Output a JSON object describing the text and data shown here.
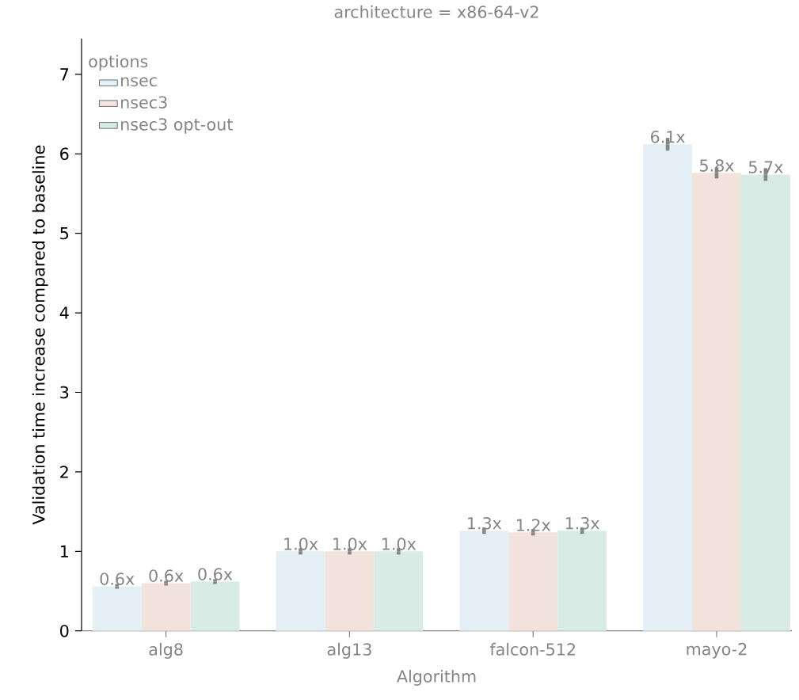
{
  "chart_data": {
    "type": "bar",
    "title": "architecture = x86-64-v2",
    "xlabel": "Algorithm",
    "ylabel": "Validation time increase compared to baseline",
    "legend_title": "options",
    "legend": "top left",
    "categories": [
      "alg8",
      "alg13",
      "falcon-512",
      "mayo-2"
    ],
    "ylim": [
      0,
      7.45
    ],
    "yticks": [
      0,
      1,
      2,
      3,
      4,
      5,
      6,
      7
    ],
    "series": [
      {
        "name": "nsec",
        "color": "#e4eff6",
        "values": [
          0.56,
          1.0,
          1.26,
          6.12
        ],
        "errors": [
          0.03,
          0.04,
          0.04,
          0.08
        ],
        "value_labels": [
          "0.6x",
          "1.0x",
          "1.3x",
          "6.1x"
        ]
      },
      {
        "name": "nsec3",
        "color": "#f2e4dc",
        "values": [
          0.6,
          1.0,
          1.24,
          5.76
        ],
        "errors": [
          0.03,
          0.04,
          0.04,
          0.07
        ],
        "value_labels": [
          "0.6x",
          "1.0x",
          "1.2x",
          "5.8x"
        ]
      },
      {
        "name": "nsec3 opt-out",
        "color": "#d9ebe5",
        "values": [
          0.62,
          1.0,
          1.26,
          5.74
        ],
        "errors": [
          0.03,
          0.04,
          0.04,
          0.08
        ],
        "value_labels": [
          "0.6x",
          "1.0x",
          "1.3x",
          "5.7x"
        ]
      }
    ]
  }
}
